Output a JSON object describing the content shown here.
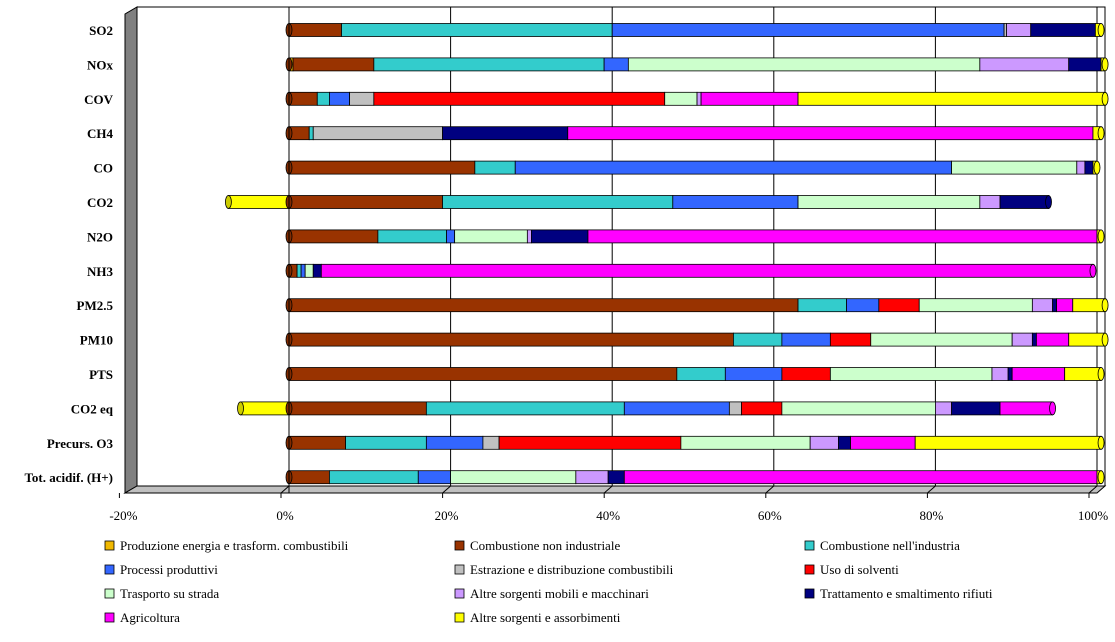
{
  "chart_data": {
    "type": "bar",
    "orientation": "horizontal",
    "stacked": true,
    "percent": true,
    "xlim": [
      -20,
      100
    ],
    "xticks": [
      "-20%",
      "0%",
      "20%",
      "40%",
      "60%",
      "80%",
      "100%"
    ],
    "grid": "vertical major gridlines",
    "legend_position": "bottom",
    "categories": [
      "SO2",
      "NOx",
      "COV",
      "CH4",
      "CO",
      "CO2",
      "N2O",
      "NH3",
      "PM2.5",
      "PM10",
      "PTS",
      "CO2 eq",
      "Precurs. O3",
      "Tot. acidif. (H+)"
    ],
    "series": [
      {
        "name": "Produzione energia e trasform. combustibili",
        "color": "#F0B800",
        "values": [
          0,
          0.5,
          0,
          0,
          0,
          0,
          0,
          0,
          0,
          0,
          0,
          0,
          0,
          0
        ]
      },
      {
        "name": "Combustione non industriale",
        "color": "#993300",
        "values": [
          6.5,
          10,
          3.5,
          2.5,
          23,
          19,
          11,
          1,
          63,
          55,
          48,
          17,
          7,
          5
        ]
      },
      {
        "name": "Combustione nell'industria",
        "color": "#33CCCC",
        "values": [
          33.5,
          28.5,
          1.5,
          0.5,
          5,
          28.5,
          8.5,
          0.5,
          6,
          6,
          6,
          24.5,
          10,
          11
        ]
      },
      {
        "name": "Processi produttivi",
        "color": "#3366FF",
        "values": [
          48.5,
          3,
          2.5,
          0,
          54,
          15.5,
          1,
          0.5,
          4,
          6,
          7,
          13,
          7,
          4
        ]
      },
      {
        "name": "Estrazione e distribuzione combustibili",
        "color": "#C0C0C0",
        "values": [
          0.3,
          0,
          3,
          16,
          0,
          0,
          0,
          0,
          0,
          0,
          0,
          1.5,
          2,
          0
        ]
      },
      {
        "name": "Uso di solventi",
        "color": "#FF0000",
        "values": [
          0,
          0,
          36,
          0,
          0,
          0,
          0,
          0,
          5,
          5,
          6,
          5,
          22.5,
          0
        ]
      },
      {
        "name": "Trasporto su strada",
        "color": "#CCFFCC",
        "values": [
          0,
          43.5,
          4,
          0,
          15.5,
          22.5,
          9,
          1,
          14,
          17.5,
          20,
          19,
          16,
          15.5
        ]
      },
      {
        "name": "Altre sorgenti mobili e macchinari",
        "color": "#CC99FF",
        "values": [
          3,
          11,
          0.5,
          0,
          1,
          2.5,
          0.5,
          0,
          2.5,
          2.5,
          2,
          2,
          3.5,
          4
        ]
      },
      {
        "name": "Trattamento e smaltimento rifiuti",
        "color": "#000080",
        "values": [
          8,
          4,
          0,
          15.5,
          1,
          6,
          7,
          1,
          0.5,
          0.5,
          0.5,
          6,
          1.5,
          2
        ]
      },
      {
        "name": "Agricoltura",
        "color": "#FF00FF",
        "values": [
          0,
          0,
          12,
          65,
          0,
          0,
          63,
          95.5,
          2,
          4,
          6.5,
          6.5,
          8,
          58.5
        ]
      },
      {
        "name": "Altre sorgenti e assorbimenti",
        "color": "#FFFF00",
        "values": [
          0.7,
          0.5,
          38,
          1,
          0.5,
          -7.5,
          0.5,
          0,
          4,
          4.5,
          4.5,
          -6,
          23,
          0.5
        ]
      }
    ]
  }
}
